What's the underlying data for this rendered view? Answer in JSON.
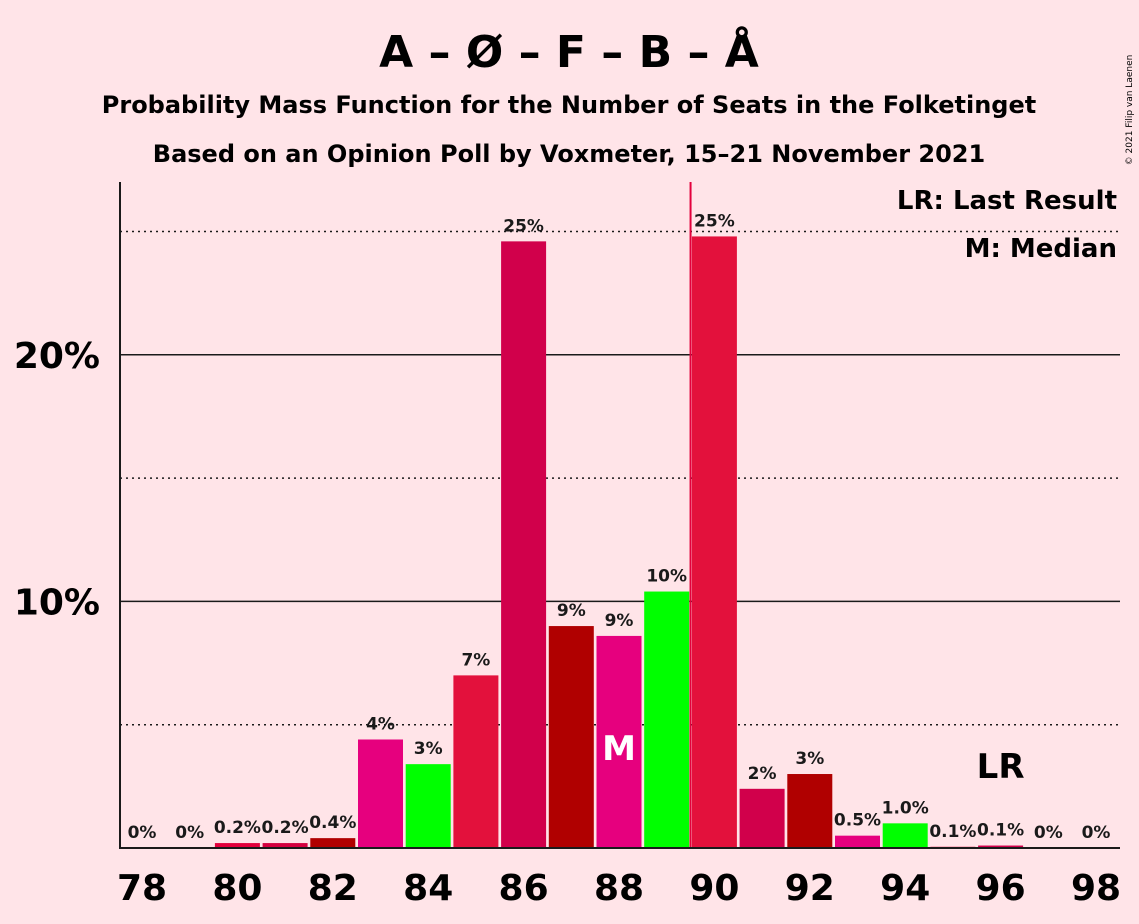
{
  "copyright": "© 2021 Filip van Laenen",
  "chart_data": {
    "type": "bar",
    "title": "A – Ø – F – B – Å",
    "subtitle1": "Probability Mass Function for the Number of Seats in the Folketinget",
    "subtitle2": "Based on an Opinion Poll by Voxmeter, 15–21 November 2021",
    "legend": {
      "lr": "LR: Last Result",
      "m": "M: Median",
      "placement": "top-right"
    },
    "ylim": [
      0,
      27
    ],
    "y_ticks": [
      {
        "value": 10,
        "label": "10%"
      },
      {
        "value": 20,
        "label": "20%"
      }
    ],
    "dotted_lines": [
      5,
      15,
      25
    ],
    "x_tick_labels": [
      "78",
      "80",
      "82",
      "84",
      "86",
      "88",
      "90",
      "92",
      "94",
      "96",
      "98"
    ],
    "x": [
      78,
      79,
      80,
      81,
      82,
      83,
      84,
      85,
      86,
      87,
      88,
      89,
      90,
      91,
      92,
      93,
      94,
      95,
      96,
      97,
      98
    ],
    "values": [
      0,
      0,
      0.2,
      0.2,
      0.4,
      4.4,
      3.4,
      7.0,
      24.6,
      9.0,
      8.6,
      10.4,
      24.8,
      2.4,
      3.0,
      0.5,
      1.0,
      0.05,
      0.1,
      0,
      0
    ],
    "labels": [
      "0%",
      "0%",
      "0.2%",
      "0.2%",
      "0.4%",
      "4%",
      "3%",
      "7%",
      "25%",
      "9%",
      "9%",
      "10%",
      "25%",
      "2%",
      "3%",
      "0.5%",
      "1.0%",
      "0.1%",
      "0.1%",
      "0%",
      "0%"
    ],
    "bar_colors": [
      "#e3003c",
      "#d4003f",
      "#e3003c",
      "#d4003f",
      "#b00000",
      "#e6007e",
      "#00ff00",
      "#e3113c",
      "#d1004b",
      "#b00000",
      "#e6007e",
      "#00ff00",
      "#e3113c",
      "#d1004b",
      "#b00000",
      "#e6007e",
      "#00ff00",
      "#e3113c",
      "#d1004b",
      "#b00000",
      "#e6007e"
    ],
    "median": {
      "x": 88,
      "label": "M"
    },
    "last_result": {
      "x": 96,
      "label": "LR",
      "line_x": 89.5
    }
  }
}
